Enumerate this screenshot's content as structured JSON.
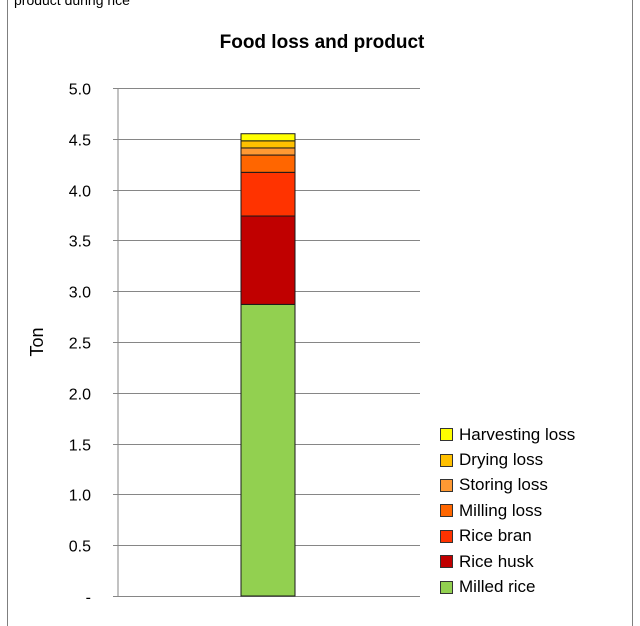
{
  "page": {
    "caption_fragment": "product during rice"
  },
  "chart_data": {
    "type": "bar",
    "stacked": true,
    "title": "Food loss and product",
    "xlabel": "",
    "ylabel": "Ton",
    "ylim": [
      0,
      5.0
    ],
    "yticks": [
      {
        "value": 0,
        "label": "-"
      },
      {
        "value": 0.5,
        "label": "0.5"
      },
      {
        "value": 1.0,
        "label": "1.0"
      },
      {
        "value": 1.5,
        "label": "1.5"
      },
      {
        "value": 2.0,
        "label": "2.0"
      },
      {
        "value": 2.5,
        "label": "2.5"
      },
      {
        "value": 3.0,
        "label": "3.0"
      },
      {
        "value": 3.5,
        "label": "3.5"
      },
      {
        "value": 4.0,
        "label": "4.0"
      },
      {
        "value": 4.5,
        "label": "4.5"
      },
      {
        "value": 5.0,
        "label": "5.0"
      }
    ],
    "grid": true,
    "legend_position": "right",
    "categories": [
      ""
    ],
    "series": [
      {
        "name": "Milled rice",
        "values": [
          2.87
        ],
        "color": "#92d050"
      },
      {
        "name": "Rice husk",
        "values": [
          0.87
        ],
        "color": "#c00000"
      },
      {
        "name": "Rice bran",
        "values": [
          0.43
        ],
        "color": "#ff3300"
      },
      {
        "name": "Milling loss",
        "values": [
          0.17
        ],
        "color": "#ff6600"
      },
      {
        "name": "Storing loss",
        "values": [
          0.07
        ],
        "color": "#ff9933"
      },
      {
        "name": "Drying loss",
        "values": [
          0.07
        ],
        "color": "#ffc000"
      },
      {
        "name": "Harvesting loss",
        "values": [
          0.07
        ],
        "color": "#ffff00"
      }
    ]
  }
}
